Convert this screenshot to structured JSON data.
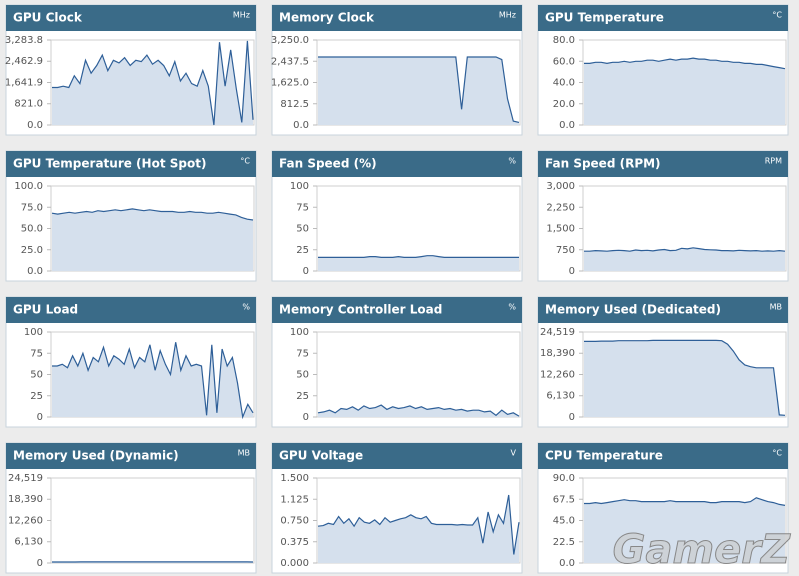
{
  "chart_data": [
    {
      "type": "area",
      "title": "GPU Clock",
      "unit": "MHz",
      "color": "#2e5f98",
      "values": [
        1450,
        1450,
        1500,
        1450,
        1900,
        1600,
        2500,
        2000,
        2300,
        2700,
        2100,
        2500,
        2400,
        2600,
        2300,
        2500,
        2450,
        2700,
        2350,
        2500,
        2300,
        1900,
        2450,
        1700,
        2000,
        1600,
        1500,
        2100,
        1500,
        0,
        3200,
        1500,
        2900,
        1400,
        100,
        3250,
        200
      ],
      "ylim": [
        0,
        3283.8
      ],
      "yticks": [
        {
          "value": 0,
          "label": "0.0"
        },
        {
          "value": 821,
          "label": "821.0"
        },
        {
          "value": 1641.9,
          "label": "1,641.9"
        },
        {
          "value": 2462.9,
          "label": "2,462.9"
        },
        {
          "value": 3283.8,
          "label": "3,283.8"
        }
      ]
    },
    {
      "type": "area",
      "title": "Memory Clock",
      "unit": "MHz",
      "color": "#2e5f98",
      "values": [
        2600,
        2600,
        2600,
        2600,
        2600,
        2600,
        2600,
        2600,
        2600,
        2600,
        2600,
        2600,
        2600,
        2600,
        2600,
        2600,
        2600,
        2600,
        2600,
        2600,
        2600,
        2600,
        2600,
        2600,
        2600,
        600,
        2600,
        2600,
        2600,
        2600,
        2600,
        2600,
        2500,
        1000,
        150,
        100
      ],
      "ylim": [
        0,
        3250
      ],
      "yticks": [
        {
          "value": 0,
          "label": "0.0"
        },
        {
          "value": 812.5,
          "label": "812.5"
        },
        {
          "value": 1625,
          "label": "1,625.0"
        },
        {
          "value": 2437.5,
          "label": "2,437.5"
        },
        {
          "value": 3250,
          "label": "3,250.0"
        }
      ]
    },
    {
      "type": "area",
      "title": "GPU Temperature",
      "unit": "°C",
      "color": "#2e5f98",
      "values": [
        58,
        58,
        59,
        59,
        58,
        59,
        59,
        60,
        59,
        60,
        60,
        61,
        61,
        60,
        61,
        62,
        61,
        62,
        62,
        63,
        62,
        62,
        61,
        61,
        60,
        60,
        59,
        59,
        58,
        58,
        57,
        57,
        56,
        55,
        54,
        53
      ],
      "ylim": [
        0,
        80
      ],
      "yticks": [
        {
          "value": 0,
          "label": "0.0"
        },
        {
          "value": 20,
          "label": "20.0"
        },
        {
          "value": 40,
          "label": "40.0"
        },
        {
          "value": 60,
          "label": "60.0"
        },
        {
          "value": 80,
          "label": "80.0"
        }
      ]
    },
    {
      "type": "area",
      "title": "GPU Temperature (Hot Spot)",
      "unit": "°C",
      "color": "#2e5f98",
      "values": [
        68,
        67,
        68,
        69,
        68,
        69,
        70,
        69,
        71,
        70,
        71,
        72,
        71,
        72,
        73,
        72,
        71,
        72,
        71,
        70,
        70,
        70,
        69,
        69,
        70,
        69,
        69,
        68,
        68,
        69,
        68,
        67,
        66,
        63,
        61,
        60
      ],
      "ylim": [
        0,
        100
      ],
      "yticks": [
        {
          "value": 0,
          "label": "0.0"
        },
        {
          "value": 25,
          "label": "25.0"
        },
        {
          "value": 50,
          "label": "50.0"
        },
        {
          "value": 75,
          "label": "75.0"
        },
        {
          "value": 100,
          "label": "100.0"
        }
      ]
    },
    {
      "type": "area",
      "title": "Fan Speed (%)",
      "unit": "%",
      "color": "#2e5f98",
      "values": [
        16,
        16,
        16,
        16,
        16,
        16,
        16,
        16,
        16,
        17,
        17,
        16,
        16,
        16,
        17,
        16,
        16,
        16,
        17,
        18,
        18,
        17,
        16,
        16,
        16,
        16,
        16,
        16,
        16,
        16,
        16,
        16,
        16,
        16,
        16,
        16
      ],
      "ylim": [
        0,
        100
      ],
      "yticks": [
        0,
        25,
        50,
        75,
        100
      ]
    },
    {
      "type": "area",
      "title": "Fan Speed (RPM)",
      "unit": "RPM",
      "color": "#2e5f98",
      "values": [
        700,
        700,
        720,
        710,
        700,
        720,
        730,
        720,
        700,
        740,
        720,
        730,
        710,
        740,
        760,
        720,
        730,
        800,
        780,
        820,
        790,
        760,
        750,
        740,
        720,
        720,
        710,
        730,
        720,
        710,
        720,
        700,
        710,
        700,
        720,
        700
      ],
      "ylim": [
        0,
        3000
      ],
      "yticks": [
        0,
        750,
        {
          "value": 1500,
          "label": "1,500"
        },
        {
          "value": 2250,
          "label": "2,250"
        },
        {
          "value": 3000,
          "label": "3,000"
        }
      ]
    },
    {
      "type": "area",
      "title": "GPU Load",
      "unit": "%",
      "color": "#2e5f98",
      "values": [
        60,
        60,
        62,
        58,
        72,
        60,
        75,
        55,
        70,
        65,
        82,
        60,
        72,
        68,
        62,
        80,
        58,
        70,
        65,
        85,
        55,
        78,
        62,
        50,
        88,
        55,
        72,
        60,
        62,
        60,
        2,
        85,
        5,
        80,
        60,
        70,
        40,
        0,
        15,
        5
      ],
      "ylim": [
        0,
        100
      ],
      "yticks": [
        0,
        25,
        50,
        75,
        100
      ]
    },
    {
      "type": "area",
      "title": "Memory Controller Load",
      "unit": "%",
      "color": "#2e5f98",
      "values": [
        5,
        6,
        8,
        5,
        10,
        9,
        12,
        8,
        13,
        10,
        11,
        14,
        9,
        12,
        10,
        11,
        13,
        10,
        12,
        9,
        10,
        11,
        9,
        10,
        8,
        9,
        7,
        8,
        8,
        6,
        7,
        2,
        8,
        3,
        5,
        1
      ],
      "ylim": [
        0,
        100
      ],
      "yticks": [
        0,
        25,
        50,
        75,
        100
      ]
    },
    {
      "type": "area",
      "title": "Memory Used (Dedicated)",
      "unit": "MB",
      "color": "#2e5f98",
      "values": [
        21800,
        21800,
        21800,
        21900,
        21900,
        21900,
        22000,
        22000,
        22000,
        22000,
        22000,
        22000,
        22100,
        22100,
        22100,
        22100,
        22100,
        22100,
        22100,
        22100,
        22100,
        22100,
        22100,
        22100,
        22000,
        21000,
        19000,
        16500,
        15000,
        14500,
        14200,
        14200,
        14200,
        14200,
        600,
        500
      ],
      "ylim": [
        0,
        24519
      ],
      "yticks": [
        0,
        {
          "value": 6130,
          "label": "6,130"
        },
        {
          "value": 12260,
          "label": "12,260"
        },
        {
          "value": 18390,
          "label": "18,390"
        },
        {
          "value": 24519,
          "label": "24,519"
        }
      ]
    },
    {
      "type": "area",
      "title": "Memory Used (Dynamic)",
      "unit": "MB",
      "color": "#2e5f98",
      "values": [
        300,
        300,
        300,
        300,
        300,
        310,
        310,
        310,
        310,
        310,
        310,
        310,
        310,
        320,
        320,
        320,
        320,
        320,
        320,
        320,
        320,
        320,
        320,
        320,
        320,
        320,
        320,
        320,
        320,
        320,
        320,
        320,
        320,
        320,
        310,
        300
      ],
      "ylim": [
        0,
        24519
      ],
      "yticks": [
        0,
        {
          "value": 6130,
          "label": "6,130"
        },
        {
          "value": 12260,
          "label": "12,260"
        },
        {
          "value": 18390,
          "label": "18,390"
        },
        {
          "value": 24519,
          "label": "24,519"
        }
      ]
    },
    {
      "type": "area",
      "title": "GPU Voltage",
      "unit": "V",
      "color": "#2e5f98",
      "values": [
        0.65,
        0.66,
        0.7,
        0.68,
        0.82,
        0.7,
        0.78,
        0.65,
        0.8,
        0.72,
        0.7,
        0.76,
        0.68,
        0.8,
        0.72,
        0.75,
        0.78,
        0.8,
        0.85,
        0.8,
        0.78,
        0.82,
        0.7,
        0.68,
        0.68,
        0.68,
        0.68,
        0.67,
        0.68,
        0.67,
        0.67,
        0.8,
        0.35,
        0.9,
        0.55,
        0.85,
        0.7,
        1.2,
        0.15,
        0.72
      ],
      "ylim": [
        0,
        1.5
      ],
      "yticks": [
        {
          "value": 0,
          "label": "0.000"
        },
        {
          "value": 0.375,
          "label": "0.375"
        },
        {
          "value": 0.75,
          "label": "0.750"
        },
        {
          "value": 1.125,
          "label": "1.125"
        },
        {
          "value": 1.5,
          "label": "1.500"
        }
      ]
    },
    {
      "type": "area",
      "title": "CPU Temperature",
      "unit": "°C",
      "color": "#2e5f98",
      "values": [
        63,
        63,
        64,
        63,
        64,
        65,
        66,
        67,
        66,
        66,
        65,
        65,
        65,
        65,
        65,
        66,
        65,
        65,
        65,
        65,
        65,
        65,
        64,
        64,
        65,
        65,
        65,
        65,
        64,
        65,
        69,
        67,
        65,
        64,
        62,
        61
      ],
      "ylim": [
        0,
        90
      ],
      "yticks": [
        {
          "value": 0,
          "label": "0.0"
        },
        {
          "value": 22.5,
          "label": "22.5"
        },
        {
          "value": 45,
          "label": "45.0"
        },
        {
          "value": 67.5,
          "label": "67.5"
        },
        {
          "value": 90,
          "label": "90.0"
        }
      ]
    }
  ],
  "watermark": "GamerZ"
}
